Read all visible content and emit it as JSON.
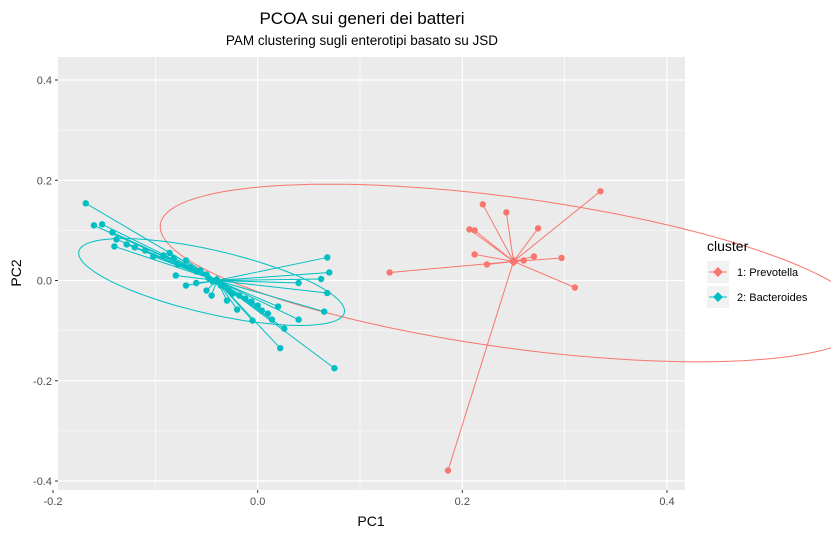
{
  "chart_data": {
    "type": "scatter",
    "title": "PCOA sui generi dei batteri",
    "subtitle": "PAM clustering sugli enterotipi basato su JSD",
    "xlabel": "PC1",
    "ylabel": "PC2",
    "xlim": [
      -0.2,
      0.4
    ],
    "ylim": [
      -0.4,
      0.4
    ],
    "x_ticks": [
      -0.2,
      0.0,
      0.2,
      0.4
    ],
    "x_tick_labels": [
      "-0.2",
      "0.0",
      "0.2",
      "0.4"
    ],
    "y_ticks": [
      -0.4,
      -0.2,
      0.0,
      0.2,
      0.4
    ],
    "y_tick_labels": [
      "-0.4",
      "-0.2",
      "0.0",
      "0.2",
      "0.4"
    ],
    "grid": true,
    "legend": {
      "title": "cluster",
      "position": "right"
    },
    "series": [
      {
        "name": "1: Prevotella",
        "color": "#F8766D",
        "centroid": [
          0.25,
          0.038
        ],
        "ellipse": {
          "center": [
            0.25,
            0.015
          ],
          "semi_axes": [
            0.145,
            0.36
          ],
          "angle_deg": 72
        },
        "points": [
          [
            0.335,
            0.178
          ],
          [
            0.22,
            0.152
          ],
          [
            0.243,
            0.136
          ],
          [
            0.207,
            0.102
          ],
          [
            0.212,
            0.1
          ],
          [
            0.274,
            0.104
          ],
          [
            0.212,
            0.052
          ],
          [
            0.297,
            0.045
          ],
          [
            0.27,
            0.048
          ],
          [
            0.224,
            0.032
          ],
          [
            0.31,
            -0.014
          ],
          [
            0.129,
            0.016
          ],
          [
            0.186,
            -0.379
          ],
          [
            0.26,
            0.04
          ]
        ]
      },
      {
        "name": "2: Bacteroides",
        "color": "#00BFC4",
        "centroid": [
          -0.04,
          0.0
        ],
        "ellipse": {
          "center": [
            -0.045,
            -0.003
          ],
          "semi_axes": [
            0.145,
            0.058
          ],
          "angle_deg": -29
        },
        "points": [
          [
            -0.168,
            0.154
          ],
          [
            -0.16,
            0.11
          ],
          [
            -0.152,
            0.112
          ],
          [
            -0.142,
            0.096
          ],
          [
            -0.138,
            0.082
          ],
          [
            -0.14,
            0.068
          ],
          [
            -0.128,
            0.072
          ],
          [
            -0.12,
            0.066
          ],
          [
            -0.11,
            0.06
          ],
          [
            -0.102,
            0.048
          ],
          [
            -0.092,
            0.05
          ],
          [
            -0.086,
            0.055
          ],
          [
            -0.082,
            0.045
          ],
          [
            -0.078,
            0.032
          ],
          [
            -0.07,
            0.04
          ],
          [
            -0.066,
            0.026
          ],
          [
            -0.06,
            0.018
          ],
          [
            -0.056,
            0.02
          ],
          [
            -0.05,
            0.012
          ],
          [
            -0.048,
            0.005
          ],
          [
            -0.044,
            -0.002
          ],
          [
            -0.04,
            0.002
          ],
          [
            -0.036,
            -0.01
          ],
          [
            -0.032,
            -0.012
          ],
          [
            -0.028,
            -0.02
          ],
          [
            -0.024,
            -0.026
          ],
          [
            -0.018,
            -0.03
          ],
          [
            -0.012,
            -0.036
          ],
          [
            -0.006,
            -0.042
          ],
          [
            0.0,
            -0.05
          ],
          [
            0.004,
            -0.06
          ],
          [
            0.01,
            -0.066
          ],
          [
            0.02,
            -0.052
          ],
          [
            0.014,
            -0.078
          ],
          [
            0.026,
            -0.096
          ],
          [
            0.022,
            -0.135
          ],
          [
            0.068,
            0.046
          ],
          [
            0.07,
            0.016
          ],
          [
            0.062,
            0.003
          ],
          [
            0.04,
            -0.005
          ],
          [
            0.068,
            -0.025
          ],
          [
            0.075,
            -0.175
          ],
          [
            0.065,
            -0.062
          ],
          [
            0.04,
            -0.078
          ],
          [
            -0.07,
            -0.01
          ],
          [
            -0.05,
            -0.02
          ],
          [
            -0.03,
            -0.04
          ],
          [
            -0.02,
            -0.058
          ],
          [
            -0.005,
            -0.08
          ],
          [
            -0.06,
            -0.005
          ],
          [
            -0.08,
            0.01
          ],
          [
            -0.045,
            -0.03
          ]
        ]
      }
    ]
  }
}
